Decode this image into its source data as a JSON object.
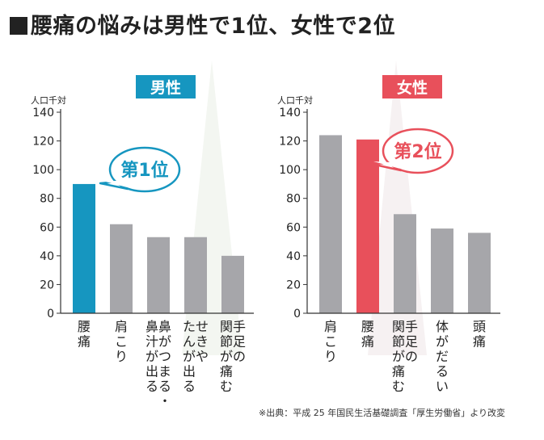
{
  "title": "腰痛の悩みは男性で1位、女性で2位",
  "source": "※出典：平成 25 年国民生活基礎調査「厚生労働省」より改変",
  "colors": {
    "male_accent": "#1696c0",
    "female_accent": "#e8505b",
    "bar_default": "#a6a6aa",
    "axis": "#333333"
  },
  "chart_data": [
    {
      "type": "bar",
      "title": "男性",
      "ylabel": "人口千対",
      "ylim": [
        0,
        140
      ],
      "yticks": [
        0,
        20,
        40,
        60,
        80,
        100,
        120,
        140
      ],
      "categories": [
        "腰痛",
        "肩こり",
        "鼻がつまる・鼻汁が出る",
        "せきやたんが出る",
        "手足の関節が痛む"
      ],
      "category_lines": [
        [
          "腰痛"
        ],
        [
          "肩こり"
        ],
        [
          "鼻がつまる・",
          "鼻汁が出る"
        ],
        [
          "せきや",
          "たんが出る"
        ],
        [
          "手足の",
          "関節が痛む"
        ]
      ],
      "values": [
        90,
        62,
        53,
        53,
        40
      ],
      "highlight_index": 0,
      "annotation": "第1位"
    },
    {
      "type": "bar",
      "title": "女性",
      "ylabel": "人口千対",
      "ylim": [
        0,
        140
      ],
      "yticks": [
        0,
        20,
        40,
        60,
        80,
        100,
        120,
        140
      ],
      "categories": [
        "肩こり",
        "腰痛",
        "手足の関節が痛む",
        "体がだるい",
        "頭痛"
      ],
      "category_lines": [
        [
          "肩こり"
        ],
        [
          "腰痛"
        ],
        [
          "手足の",
          "関節が痛む"
        ],
        [
          "体がだるい"
        ],
        [
          "頭痛"
        ]
      ],
      "values": [
        124,
        121,
        69,
        59,
        56
      ],
      "highlight_index": 1,
      "annotation": "第2位"
    }
  ]
}
